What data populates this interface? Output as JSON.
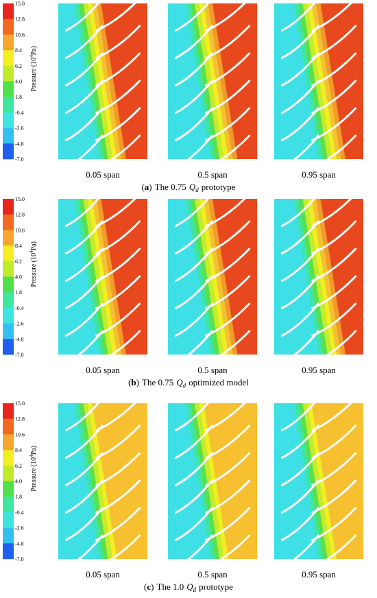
{
  "colorbar": {
    "title_pre": "Pressure (10",
    "title_sup": "4",
    "title_post": "Pa)",
    "labels": [
      "15.0",
      "12.8",
      "10.6",
      "8.4",
      "6.2",
      "4.0",
      "1.8",
      "-0.4",
      "-2.6",
      "-4.8",
      "-7.0"
    ]
  },
  "spans": [
    "0.05 span",
    "0.5 span",
    "0.95 span"
  ],
  "panels": [
    {
      "letter": "a",
      "pre": "The 0.75",
      "q": "Q",
      "sub": "d",
      "post": "prototype"
    },
    {
      "letter": "b",
      "pre": "The 0.75",
      "q": "Q",
      "sub": "d",
      "post": "optimized model"
    },
    {
      "letter": "c",
      "pre": "The 1.0",
      "q": "Q",
      "sub": "d",
      "post": "prototype"
    }
  ]
}
